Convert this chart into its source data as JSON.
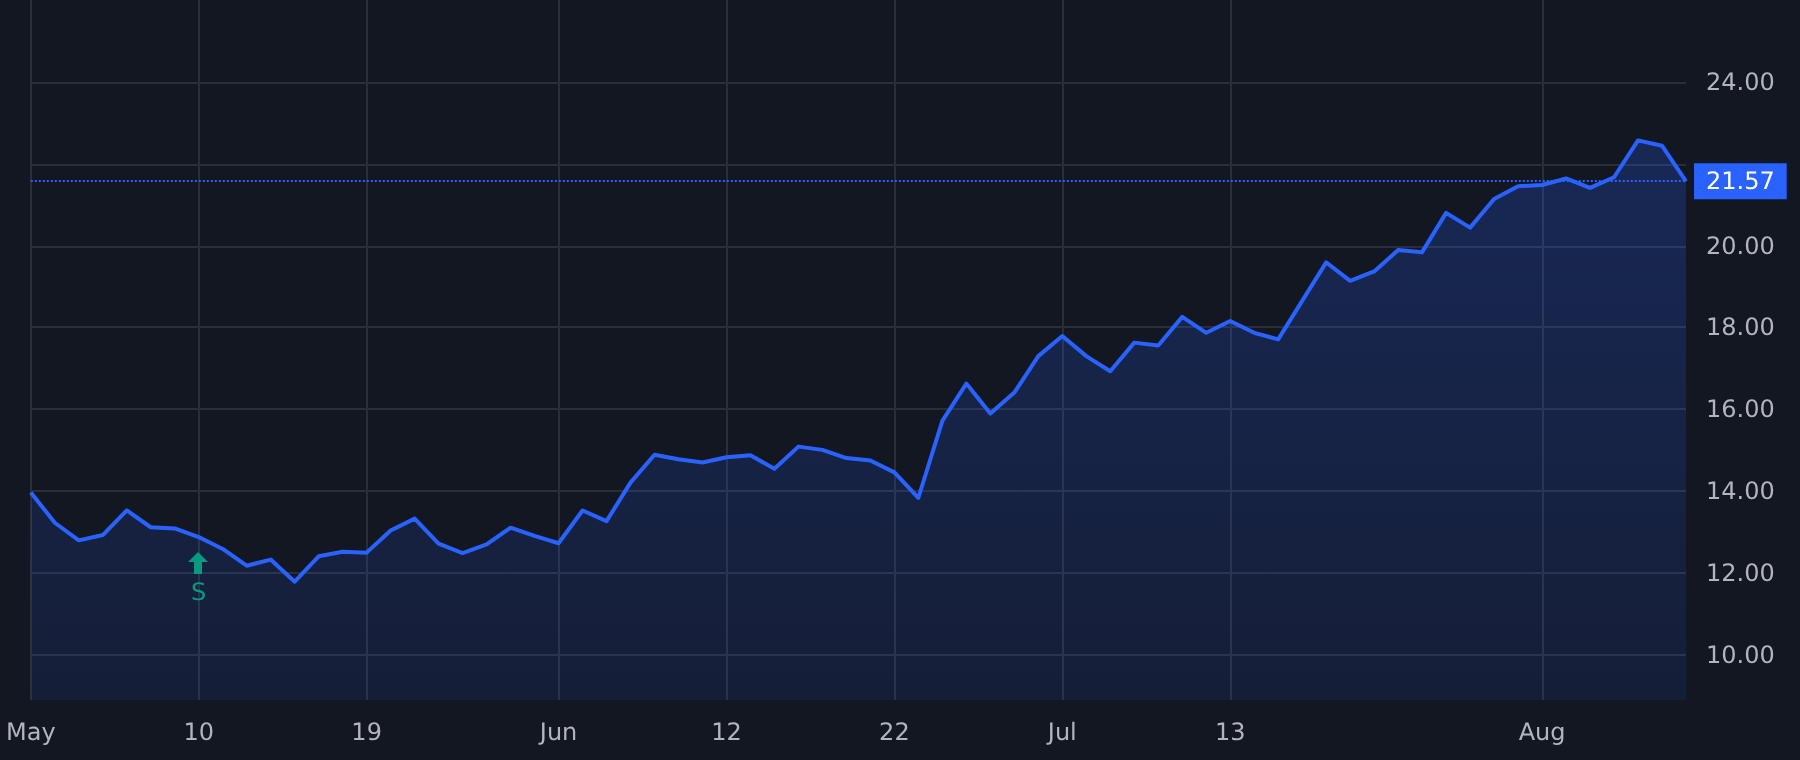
{
  "chart_data": {
    "type": "area",
    "categories": [
      "May",
      null,
      null,
      null,
      null,
      null,
      null,
      "10",
      null,
      null,
      null,
      null,
      null,
      null,
      "19",
      null,
      null,
      null,
      null,
      null,
      null,
      null,
      "Jun",
      null,
      null,
      null,
      null,
      null,
      null,
      "12",
      null,
      null,
      null,
      null,
      null,
      null,
      "22",
      null,
      null,
      null,
      null,
      null,
      null,
      "Jul",
      null,
      null,
      null,
      null,
      null,
      null,
      "13",
      null,
      null,
      null,
      null,
      null,
      null,
      null,
      null,
      null,
      null,
      null,
      null,
      "Aug",
      null,
      null,
      null,
      null,
      null,
      null
    ],
    "series": [
      {
        "color": "#2962ff",
        "values": [
          13.97,
          13.23,
          12.8,
          12.93,
          13.53,
          13.12,
          13.09,
          12.88,
          12.59,
          12.18,
          12.33,
          11.79,
          12.41,
          12.52,
          12.5,
          13.04,
          13.33,
          12.72,
          12.49,
          12.7,
          13.11,
          12.91,
          12.73,
          13.53,
          13.27,
          14.21,
          14.89,
          14.78,
          14.7,
          14.83,
          14.88,
          14.55,
          15.09,
          15.01,
          14.81,
          14.75,
          14.46,
          13.84,
          15.72,
          16.63,
          15.9,
          16.41,
          17.3,
          17.79,
          17.3,
          16.93,
          17.63,
          17.56,
          18.26,
          17.87,
          18.16,
          17.87,
          17.71,
          18.65,
          19.59,
          19.14,
          19.37,
          19.89,
          19.84,
          20.8,
          20.44,
          21.14,
          21.45,
          21.48,
          21.64,
          21.41,
          21.67,
          22.57,
          22.44,
          21.57
        ]
      }
    ],
    "ylim": [
      8.9,
      26
    ],
    "yticks": [
      {
        "value": 10,
        "label": "10.00"
      },
      {
        "value": 12,
        "label": "12.00"
      },
      {
        "value": 14,
        "label": "14.00"
      },
      {
        "value": 16,
        "label": "16.00"
      },
      {
        "value": 18,
        "label": "18.00"
      },
      {
        "value": 20,
        "label": "20.00"
      },
      {
        "value": 22,
        "label": null
      },
      {
        "value": 24,
        "label": "24.00"
      }
    ],
    "grid": true,
    "ref_lines": [
      {
        "axis": "y",
        "value": 21.57,
        "label": "21.57",
        "color": "#2962ff",
        "line_style": "dotted"
      }
    ],
    "annotations": [
      {
        "text": "S",
        "x": "10",
        "y": 12.2
      }
    ]
  }
}
